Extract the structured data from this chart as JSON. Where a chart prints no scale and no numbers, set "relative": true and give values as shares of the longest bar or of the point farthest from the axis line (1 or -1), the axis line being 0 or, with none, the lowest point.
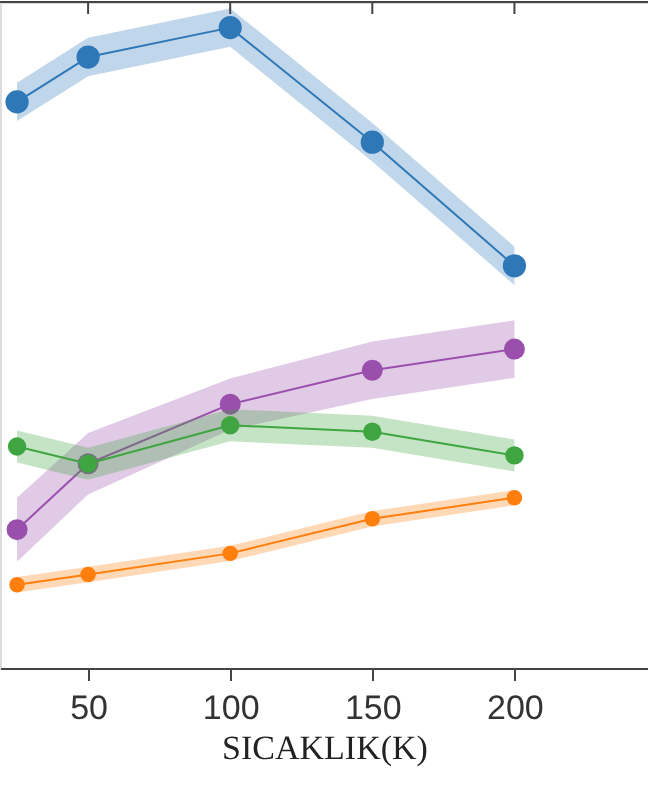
{
  "chart_data": {
    "type": "line",
    "xlabel": "SICAKLIK(K)",
    "relative": true,
    "x": [
      25,
      50,
      100,
      150,
      200
    ],
    "xlim": [
      19,
      247
    ],
    "xticks": [
      50,
      100,
      150,
      200
    ],
    "marker": "circle",
    "line_style": "solid",
    "series": [
      {
        "color": "#2e78b8",
        "values": [
          0.884,
          0.954,
          1,
          0.821,
          0.628
        ],
        "lower": [
          0.854,
          0.924,
          0.97,
          0.791,
          0.598
        ],
        "upper": [
          0.914,
          0.984,
          1.03,
          0.851,
          0.658
        ]
      },
      {
        "color": "#9b4fad",
        "values": [
          0.216,
          0.319,
          0.412,
          0.465,
          0.498
        ],
        "lower": [
          0.166,
          0.271,
          0.372,
          0.42,
          0.453
        ],
        "upper": [
          0.266,
          0.367,
          0.452,
          0.51,
          0.543
        ]
      },
      {
        "color": "#3fa540",
        "values": [
          0.346,
          0.319,
          0.379,
          0.369,
          0.332
        ],
        "lower": [
          0.321,
          0.294,
          0.354,
          0.344,
          0.307
        ],
        "upper": [
          0.371,
          0.344,
          0.404,
          0.394,
          0.357
        ]
      },
      {
        "color": "#ff7f0e",
        "values": [
          0.13,
          0.146,
          0.179,
          0.233,
          0.266
        ],
        "lower": [
          0.118,
          0.134,
          0.167,
          0.221,
          0.254
        ],
        "upper": [
          0.142,
          0.158,
          0.191,
          0.245,
          0.278
        ]
      }
    ]
  }
}
